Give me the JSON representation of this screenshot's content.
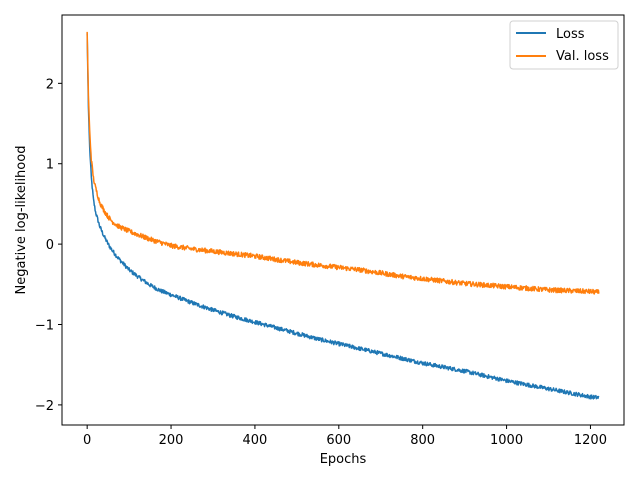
{
  "chart_data": {
    "type": "line",
    "title": "",
    "xlabel": "Epochs",
    "ylabel": "Negative log-likelihood",
    "xlim": [
      -60,
      1280
    ],
    "ylim": [
      -2.25,
      2.85
    ],
    "xticks": [
      0,
      200,
      400,
      600,
      800,
      1000,
      1200
    ],
    "yticks": [
      -2,
      -1,
      0,
      1,
      2
    ],
    "grid": false,
    "legend": "top-right",
    "series": [
      {
        "name": "Loss",
        "color": "#1f77b4",
        "x": [
          0,
          3,
          6,
          10,
          15,
          20,
          30,
          40,
          50,
          60,
          75,
          100,
          125,
          150,
          175,
          200,
          250,
          300,
          350,
          400,
          450,
          500,
          550,
          600,
          650,
          700,
          750,
          800,
          850,
          900,
          950,
          1000,
          1050,
          1100,
          1150,
          1200,
          1220
        ],
        "y": [
          2.62,
          1.7,
          1.2,
          0.82,
          0.55,
          0.4,
          0.22,
          0.1,
          0.0,
          -0.08,
          -0.18,
          -0.32,
          -0.42,
          -0.51,
          -0.58,
          -0.63,
          -0.73,
          -0.82,
          -0.9,
          -0.97,
          -1.04,
          -1.11,
          -1.18,
          -1.24,
          -1.3,
          -1.36,
          -1.42,
          -1.48,
          -1.53,
          -1.58,
          -1.64,
          -1.7,
          -1.75,
          -1.8,
          -1.85,
          -1.9,
          -1.91
        ],
        "noise": 0.025
      },
      {
        "name": "Val. loss",
        "color": "#ff7f0e",
        "x": [
          0,
          3,
          6,
          10,
          15,
          20,
          30,
          40,
          50,
          60,
          75,
          100,
          125,
          150,
          175,
          200,
          250,
          300,
          350,
          400,
          450,
          500,
          550,
          600,
          650,
          700,
          750,
          800,
          850,
          900,
          950,
          1000,
          1050,
          1100,
          1150,
          1200,
          1220
        ],
        "y": [
          2.64,
          1.85,
          1.4,
          1.05,
          0.82,
          0.7,
          0.52,
          0.42,
          0.34,
          0.28,
          0.22,
          0.16,
          0.11,
          0.06,
          0.02,
          -0.02,
          -0.06,
          -0.09,
          -0.12,
          -0.15,
          -0.19,
          -0.23,
          -0.26,
          -0.29,
          -0.32,
          -0.36,
          -0.4,
          -0.43,
          -0.46,
          -0.49,
          -0.51,
          -0.53,
          -0.55,
          -0.57,
          -0.58,
          -0.59,
          -0.6
        ],
        "noise": 0.03
      }
    ]
  }
}
